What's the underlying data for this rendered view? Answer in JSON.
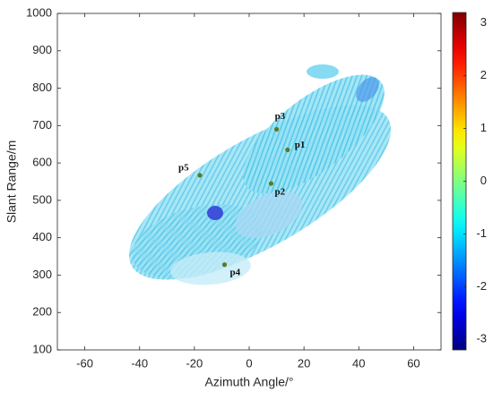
{
  "chart_data": {
    "type": "scatter",
    "x_label": "Azimuth Angle/°",
    "y_label": "Slant Range/m",
    "xlim": [
      -70,
      70
    ],
    "xticks": [
      -60,
      -40,
      -20,
      0,
      20,
      40,
      60
    ],
    "ylim": [
      100,
      1000
    ],
    "yticks": [
      100,
      200,
      300,
      400,
      500,
      600,
      700,
      800,
      900,
      1000
    ],
    "point_labels": [
      "p1",
      "p2",
      "p3",
      "p4",
      "p5"
    ],
    "x": [
      14,
      8,
      10,
      -9,
      -18
    ],
    "values": [
      635,
      545,
      690,
      328,
      567
    ],
    "color": "#5b7a25",
    "colorbar": {
      "lim": [
        -3.2,
        3.2
      ],
      "ticks": [
        -3,
        -2,
        -1,
        0,
        1,
        2,
        3
      ],
      "colormap": "jet"
    }
  }
}
